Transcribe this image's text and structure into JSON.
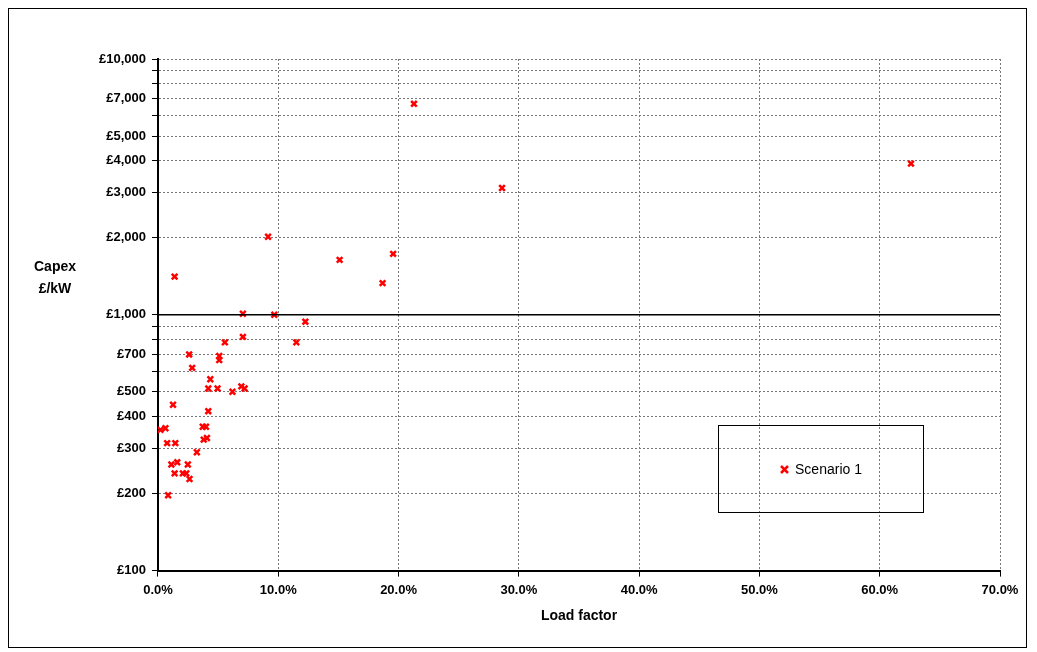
{
  "chart_data": {
    "type": "scatter",
    "xlabel": "Load factor",
    "ylabel": "Capex\n£/kW",
    "log": "y",
    "grid": true,
    "legend": "bottom right",
    "marker": "cross",
    "xlim": [
      0,
      70
    ],
    "xticks": [
      {
        "value": 0,
        "label": "0.0%"
      },
      {
        "value": 10,
        "label": "10.0%"
      },
      {
        "value": 20,
        "label": "20.0%"
      },
      {
        "value": 30,
        "label": "30.0%"
      },
      {
        "value": 40,
        "label": "40.0%"
      },
      {
        "value": 50,
        "label": "50.0%"
      },
      {
        "value": 60,
        "label": "60.0%"
      },
      {
        "value": 70,
        "label": "70.0%"
      }
    ],
    "ylim": [
      100,
      10000
    ],
    "yticks": [
      {
        "value": 100,
        "label": "£100"
      },
      {
        "value": 200,
        "label": "£200"
      },
      {
        "value": 300,
        "label": "£300"
      },
      {
        "value": 400,
        "label": "£400"
      },
      {
        "value": 500,
        "label": "£500"
      },
      {
        "value": 600,
        "label": null
      },
      {
        "value": 700,
        "label": "£700"
      },
      {
        "value": 800,
        "label": null
      },
      {
        "value": 900,
        "label": null
      },
      {
        "value": 1000,
        "label": "£1,000"
      },
      {
        "value": 2000,
        "label": "£2,000"
      },
      {
        "value": 3000,
        "label": "£3,000"
      },
      {
        "value": 4000,
        "label": "£4,000"
      },
      {
        "value": 5000,
        "label": "£5,000"
      },
      {
        "value": 6000,
        "label": null
      },
      {
        "value": 7000,
        "label": "£7,000"
      },
      {
        "value": 8000,
        "label": null
      },
      {
        "value": 9000,
        "label": null
      },
      {
        "value": 10000,
        "label": "£10,000"
      }
    ],
    "ref_lines": [
      {
        "axis": "y",
        "value": 1000,
        "color": "#000000",
        "line_style": "solid"
      }
    ],
    "series": [
      {
        "name": "Scenario 1",
        "color": "#ff0000",
        "x": [
          7.06,
          9.67,
          12.25,
          11.5,
          7.06,
          5.56,
          2.59,
          5.09,
          5.09,
          2.84,
          4.35,
          4.18,
          4.95,
          6.19,
          6.93,
          7.2,
          1.25,
          4.18,
          0.21,
          0.62,
          3.72,
          3.99,
          3.8,
          4.07,
          0.76,
          1.44,
          3.23,
          1.11,
          1.6,
          2.48,
          1.38,
          2.07,
          2.35,
          2.62,
          0.84,
          1.38,
          9.15,
          15.1,
          19.55,
          18.67,
          21.28,
          28.6,
          62.6
        ],
        "values": [
          1010,
          1000,
          940,
          780,
          820,
          780,
          700,
          690,
          665,
          620,
          560,
          515,
          515,
          500,
          525,
          515,
          445,
          420,
          355,
          360,
          365,
          365,
          325,
          330,
          315,
          315,
          290,
          260,
          265,
          260,
          240,
          240,
          240,
          228,
          197,
          1410,
          2020,
          1640,
          1730,
          1330,
          6680,
          3130,
          3900
        ]
      }
    ]
  }
}
